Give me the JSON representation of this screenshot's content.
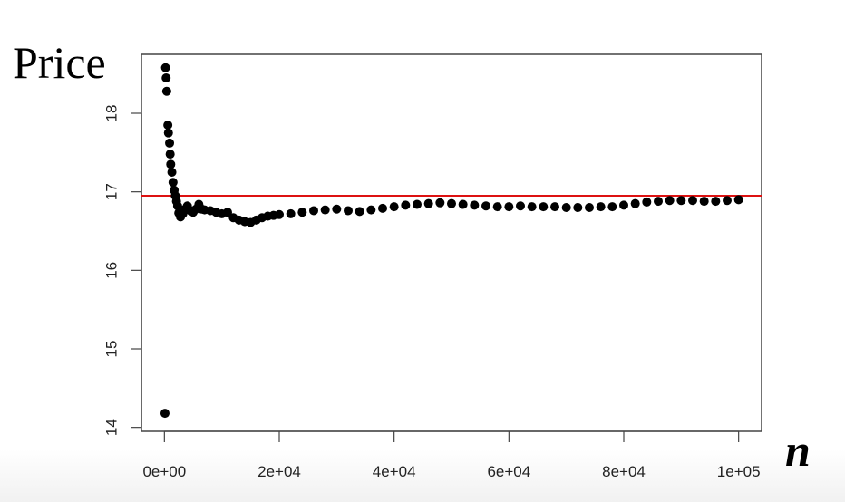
{
  "chart_data": {
    "type": "scatter",
    "title": "",
    "ylabel": "Price",
    "xlabel": "n",
    "xlim": [
      -4000,
      104000
    ],
    "ylim": [
      13.95,
      18.75
    ],
    "x_ticks": [
      0,
      20000,
      40000,
      60000,
      80000,
      100000
    ],
    "x_tick_labels": [
      "0e+00",
      "2e+04",
      "4e+04",
      "6e+04",
      "8e+04",
      "1e+05"
    ],
    "y_ticks": [
      14,
      15,
      16,
      17,
      18
    ],
    "y_tick_labels": [
      "14",
      "15",
      "16",
      "17",
      "18"
    ],
    "reference_line": {
      "y": 16.95,
      "color": "#dd1111"
    },
    "point_color": "#000000",
    "axis_color": "#444444",
    "grid": false,
    "series": [
      {
        "points": [
          [
            100,
            14.18
          ],
          [
            200,
            18.58
          ],
          [
            300,
            18.45
          ],
          [
            400,
            18.28
          ],
          [
            600,
            17.85
          ],
          [
            700,
            17.75
          ],
          [
            900,
            17.62
          ],
          [
            1000,
            17.48
          ],
          [
            1100,
            17.35
          ],
          [
            1300,
            17.25
          ],
          [
            1500,
            17.12
          ],
          [
            1700,
            17.02
          ],
          [
            1900,
            16.95
          ],
          [
            2100,
            16.88
          ],
          [
            2300,
            16.82
          ],
          [
            2500,
            16.73
          ],
          [
            2800,
            16.68
          ],
          [
            3200,
            16.72
          ],
          [
            3600,
            16.78
          ],
          [
            4000,
            16.82
          ],
          [
            4500,
            16.76
          ],
          [
            5000,
            16.74
          ],
          [
            5500,
            16.78
          ],
          [
            6000,
            16.84
          ],
          [
            6500,
            16.78
          ],
          [
            7000,
            16.77
          ],
          [
            8000,
            16.76
          ],
          [
            9000,
            16.74
          ],
          [
            10000,
            16.72
          ],
          [
            11000,
            16.74
          ],
          [
            12000,
            16.67
          ],
          [
            13000,
            16.64
          ],
          [
            14000,
            16.62
          ],
          [
            15000,
            16.61
          ],
          [
            16000,
            16.64
          ],
          [
            17000,
            16.67
          ],
          [
            18000,
            16.69
          ],
          [
            19000,
            16.7
          ],
          [
            20000,
            16.71
          ],
          [
            22000,
            16.72
          ],
          [
            24000,
            16.74
          ],
          [
            26000,
            16.76
          ],
          [
            28000,
            16.77
          ],
          [
            30000,
            16.78
          ],
          [
            32000,
            16.76
          ],
          [
            34000,
            16.75
          ],
          [
            36000,
            16.77
          ],
          [
            38000,
            16.79
          ],
          [
            40000,
            16.81
          ],
          [
            42000,
            16.83
          ],
          [
            44000,
            16.84
          ],
          [
            46000,
            16.85
          ],
          [
            48000,
            16.86
          ],
          [
            50000,
            16.85
          ],
          [
            52000,
            16.84
          ],
          [
            54000,
            16.83
          ],
          [
            56000,
            16.82
          ],
          [
            58000,
            16.81
          ],
          [
            60000,
            16.81
          ],
          [
            62000,
            16.82
          ],
          [
            64000,
            16.81
          ],
          [
            66000,
            16.81
          ],
          [
            68000,
            16.81
          ],
          [
            70000,
            16.8
          ],
          [
            72000,
            16.8
          ],
          [
            74000,
            16.8
          ],
          [
            76000,
            16.81
          ],
          [
            78000,
            16.81
          ],
          [
            80000,
            16.83
          ],
          [
            82000,
            16.85
          ],
          [
            84000,
            16.87
          ],
          [
            86000,
            16.88
          ],
          [
            88000,
            16.89
          ],
          [
            90000,
            16.89
          ],
          [
            92000,
            16.89
          ],
          [
            94000,
            16.88
          ],
          [
            96000,
            16.88
          ],
          [
            98000,
            16.89
          ],
          [
            100000,
            16.9
          ]
        ]
      }
    ]
  }
}
